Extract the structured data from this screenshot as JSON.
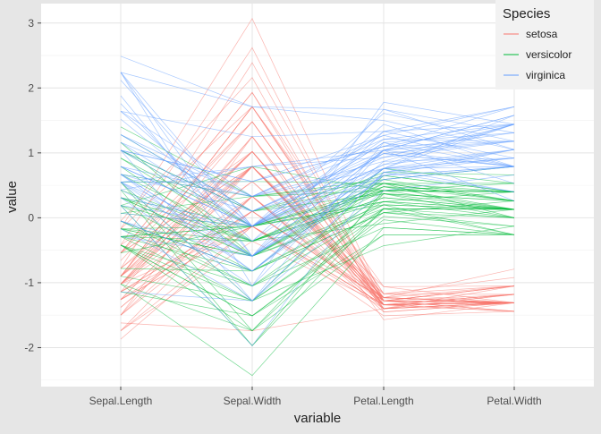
{
  "chart_data": {
    "type": "line",
    "subtype": "parallel-coordinates",
    "title": "",
    "xlabel": "variable",
    "ylabel": "value",
    "categories": [
      "Sepal.Length",
      "Sepal.Width",
      "Petal.Length",
      "Petal.Width"
    ],
    "ylim": [
      -2.6,
      3.3
    ],
    "yticks": [
      -2,
      -1,
      0,
      1,
      2,
      3
    ],
    "grid": true,
    "legend": {
      "title": "Species",
      "position": "top-right",
      "entries": [
        "setosa",
        "versicolor",
        "virginica"
      ]
    },
    "colors": {
      "setosa": "#F8766D",
      "versicolor": "#00BA38",
      "virginica": "#619CFF"
    },
    "series": [
      {
        "name": "setosa",
        "values": [
          [
            -0.9,
            1.02,
            -1.34,
            -1.31
          ],
          [
            -1.14,
            -0.13,
            -1.34,
            -1.31
          ],
          [
            -1.38,
            0.33,
            -1.4,
            -1.31
          ],
          [
            -1.5,
            0.1,
            -1.28,
            -1.31
          ],
          [
            -1.02,
            1.25,
            -1.34,
            -1.31
          ],
          [
            -0.54,
            1.93,
            -1.17,
            -1.05
          ],
          [
            -1.5,
            0.79,
            -1.34,
            -1.18
          ],
          [
            -1.02,
            0.79,
            -1.28,
            -1.31
          ],
          [
            -1.74,
            -0.36,
            -1.34,
            -1.31
          ],
          [
            -1.14,
            0.1,
            -1.28,
            -1.44
          ],
          [
            -0.54,
            1.48,
            -1.28,
            -1.31
          ],
          [
            -1.26,
            0.79,
            -1.23,
            -1.31
          ],
          [
            -1.26,
            -0.13,
            -1.34,
            -1.44
          ],
          [
            -1.87,
            -0.13,
            -1.51,
            -1.44
          ],
          [
            -0.05,
            2.16,
            -1.45,
            -1.31
          ],
          [
            -0.17,
            3.07,
            -1.28,
            -1.05
          ],
          [
            -0.54,
            1.93,
            -1.4,
            -1.05
          ],
          [
            -0.9,
            1.02,
            -1.34,
            -1.18
          ],
          [
            -0.17,
            1.71,
            -1.17,
            -1.18
          ],
          [
            -0.9,
            1.71,
            -1.28,
            -1.18
          ],
          [
            -0.54,
            0.79,
            -1.17,
            -1.31
          ],
          [
            -0.9,
            1.48,
            -1.28,
            -1.05
          ],
          [
            -1.5,
            1.25,
            -1.57,
            -1.31
          ],
          [
            -0.9,
            0.56,
            -1.17,
            -0.92
          ],
          [
            -1.26,
            0.79,
            -1.06,
            -1.31
          ],
          [
            -1.02,
            -0.13,
            -1.23,
            -1.31
          ],
          [
            -1.02,
            0.79,
            -1.23,
            -1.05
          ],
          [
            -0.78,
            1.02,
            -1.28,
            -1.31
          ],
          [
            -0.78,
            0.79,
            -1.34,
            -1.31
          ],
          [
            -1.38,
            0.33,
            -1.23,
            -1.31
          ],
          [
            -1.26,
            0.1,
            -1.23,
            -1.31
          ],
          [
            -0.54,
            0.79,
            -1.28,
            -1.05
          ],
          [
            -0.78,
            2.39,
            -1.28,
            -1.44
          ],
          [
            -0.42,
            2.62,
            -1.34,
            -1.31
          ],
          [
            -1.14,
            0.1,
            -1.28,
            -1.31
          ],
          [
            -1.02,
            0.33,
            -1.45,
            -1.31
          ],
          [
            -0.42,
            1.02,
            -1.4,
            -1.31
          ],
          [
            -1.14,
            1.25,
            -1.34,
            -1.44
          ],
          [
            -1.74,
            -0.13,
            -1.4,
            -1.31
          ],
          [
            -0.9,
            0.79,
            -1.28,
            -1.31
          ],
          [
            -1.02,
            1.02,
            -1.4,
            -1.18
          ],
          [
            -1.62,
            -1.74,
            -1.4,
            -1.18
          ],
          [
            -1.74,
            0.33,
            -1.4,
            -1.31
          ],
          [
            -1.02,
            1.02,
            -1.23,
            -0.79
          ],
          [
            -0.9,
            1.71,
            -1.06,
            -1.05
          ],
          [
            -1.26,
            -0.13,
            -1.34,
            -1.18
          ],
          [
            -0.9,
            1.71,
            -1.23,
            -1.31
          ],
          [
            -1.5,
            0.33,
            -1.34,
            -1.31
          ],
          [
            -0.66,
            1.48,
            -1.28,
            -1.31
          ],
          [
            -1.02,
            0.56,
            -1.34,
            -1.31
          ]
        ]
      },
      {
        "name": "versicolor",
        "values": [
          [
            1.4,
            0.33,
            0.53,
            0.26
          ],
          [
            0.67,
            0.33,
            0.42,
            0.4
          ],
          [
            1.28,
            0.1,
            0.65,
            0.4
          ],
          [
            -0.42,
            -1.74,
            0.14,
            0.13
          ],
          [
            0.79,
            -0.59,
            0.48,
            0.4
          ],
          [
            -0.17,
            -0.59,
            0.42,
            0.13
          ],
          [
            0.55,
            0.56,
            0.53,
            0.53
          ],
          [
            -1.14,
            -1.51,
            -0.26,
            -0.26
          ],
          [
            0.92,
            -0.36,
            0.48,
            0.13
          ],
          [
            -0.78,
            -0.82,
            0.08,
            0.26
          ],
          [
            -1.02,
            -2.43,
            -0.15,
            -0.26
          ],
          [
            0.07,
            -0.13,
            0.25,
            0.4
          ],
          [
            0.19,
            -1.97,
            0.14,
            -0.26
          ],
          [
            0.31,
            -0.36,
            0.53,
            0.26
          ],
          [
            -0.29,
            -0.36,
            -0.09,
            0.13
          ],
          [
            1.04,
            0.1,
            0.37,
            0.26
          ],
          [
            -0.29,
            -0.13,
            0.42,
            0.4
          ],
          [
            -0.05,
            -0.82,
            0.2,
            -0.26
          ],
          [
            0.43,
            -1.97,
            0.42,
            0.4
          ],
          [
            -0.29,
            -1.28,
            0.08,
            -0.13
          ],
          [
            0.07,
            0.33,
            0.59,
            0.79
          ],
          [
            0.31,
            -0.59,
            0.14,
            0.13
          ],
          [
            0.55,
            -1.28,
            0.65,
            0.4
          ],
          [
            0.31,
            -0.59,
            0.53,
            0.0
          ],
          [
            0.67,
            -0.36,
            0.31,
            0.13
          ],
          [
            0.92,
            -0.13,
            0.37,
            0.26
          ],
          [
            1.16,
            -0.59,
            0.59,
            0.26
          ],
          [
            1.04,
            -0.13,
            0.7,
            0.66
          ],
          [
            0.19,
            -0.36,
            0.42,
            0.4
          ],
          [
            -0.17,
            -1.05,
            -0.15,
            -0.26
          ],
          [
            -0.42,
            -1.51,
            0.02,
            -0.13
          ],
          [
            -0.42,
            -1.51,
            -0.03,
            -0.26
          ],
          [
            -0.05,
            -0.82,
            0.08,
            0.0
          ],
          [
            0.19,
            -0.82,
            0.76,
            0.53
          ],
          [
            -0.54,
            -0.13,
            0.42,
            0.4
          ],
          [
            0.19,
            0.79,
            0.42,
            0.53
          ],
          [
            1.04,
            0.1,
            0.53,
            0.4
          ],
          [
            0.55,
            -1.74,
            0.37,
            0.13
          ],
          [
            -0.29,
            -0.13,
            0.2,
            0.13
          ],
          [
            -0.42,
            -1.28,
            0.14,
            0.13
          ],
          [
            -0.42,
            -1.05,
            0.37,
            0.0
          ],
          [
            0.31,
            -0.13,
            0.48,
            0.26
          ],
          [
            -0.05,
            -1.05,
            0.14,
            0.0
          ],
          [
            -1.02,
            -1.74,
            -0.26,
            -0.26
          ],
          [
            -0.29,
            -0.82,
            0.25,
            0.13
          ],
          [
            -0.17,
            -0.13,
            0.25,
            0.0
          ],
          [
            -0.17,
            -0.36,
            0.25,
            0.13
          ],
          [
            0.43,
            -0.36,
            0.31,
            0.13
          ],
          [
            -0.9,
            -1.28,
            -0.43,
            -0.13
          ],
          [
            -0.17,
            -0.59,
            0.2,
            0.13
          ]
        ]
      },
      {
        "name": "virginica",
        "values": [
          [
            0.55,
            0.56,
            1.27,
            1.71
          ],
          [
            -0.05,
            -0.82,
            0.76,
            0.92
          ],
          [
            1.52,
            -0.13,
            1.21,
            1.18
          ],
          [
            0.55,
            -0.36,
            1.04,
            0.79
          ],
          [
            0.79,
            -0.13,
            1.16,
            1.31
          ],
          [
            2.12,
            -0.13,
            1.61,
            1.18
          ],
          [
            -1.14,
            -1.28,
            0.42,
            0.66
          ],
          [
            1.76,
            -0.36,
            1.44,
            0.79
          ],
          [
            1.04,
            -1.28,
            1.16,
            0.79
          ],
          [
            1.64,
            1.25,
            1.33,
            1.71
          ],
          [
            0.79,
            0.33,
            0.76,
            1.05
          ],
          [
            0.67,
            -0.82,
            0.87,
            0.92
          ],
          [
            1.16,
            -0.13,
            0.99,
            1.18
          ],
          [
            -0.17,
            -1.28,
            0.7,
            1.05
          ],
          [
            -0.05,
            -0.59,
            0.76,
            1.58
          ],
          [
            0.67,
            0.33,
            0.87,
            1.44
          ],
          [
            0.79,
            -0.13,
            0.99,
            0.79
          ],
          [
            2.24,
            1.71,
            1.67,
            1.31
          ],
          [
            2.24,
            -1.05,
            1.78,
            1.44
          ],
          [
            0.19,
            -1.97,
            0.7,
            0.4
          ],
          [
            1.28,
            0.33,
            1.1,
            1.44
          ],
          [
            -0.29,
            -0.59,
            0.65,
            1.05
          ],
          [
            2.24,
            -0.59,
            1.67,
            1.05
          ],
          [
            0.55,
            -0.82,
            0.65,
            0.79
          ],
          [
            1.04,
            0.56,
            1.1,
            1.18
          ],
          [
            1.64,
            0.33,
            1.27,
            0.79
          ],
          [
            0.43,
            -0.59,
            0.59,
            0.79
          ],
          [
            0.31,
            -0.13,
            0.65,
            0.79
          ],
          [
            0.67,
            -0.59,
            1.04,
            1.18
          ],
          [
            1.64,
            -0.13,
            1.16,
            0.53
          ],
          [
            1.88,
            -0.59,
            1.33,
            0.92
          ],
          [
            2.49,
            1.71,
            1.5,
            1.05
          ],
          [
            0.67,
            -0.59,
            1.04,
            1.31
          ],
          [
            0.55,
            -0.59,
            0.76,
            0.4
          ],
          [
            0.31,
            -1.05,
            1.04,
            0.26
          ],
          [
            2.24,
            -0.13,
            1.33,
            1.44
          ],
          [
            0.55,
            0.79,
            1.04,
            1.58
          ],
          [
            0.67,
            0.1,
            0.99,
            0.79
          ],
          [
            0.19,
            -0.13,
            0.59,
            0.79
          ],
          [
            1.28,
            0.1,
            0.93,
            1.18
          ],
          [
            1.04,
            0.1,
            1.04,
            1.58
          ],
          [
            1.28,
            0.1,
            0.76,
            1.44
          ],
          [
            -0.05,
            -0.82,
            0.76,
            0.92
          ],
          [
            1.16,
            0.33,
            1.21,
            1.44
          ],
          [
            1.04,
            0.56,
            1.1,
            1.71
          ],
          [
            1.04,
            -0.13,
            0.82,
            1.44
          ],
          [
            0.55,
            -1.28,
            0.7,
            0.92
          ],
          [
            0.79,
            -0.13,
            0.82,
            1.05
          ],
          [
            0.43,
            0.79,
            0.93,
            1.44
          ],
          [
            0.07,
            -0.13,
            0.76,
            0.79
          ]
        ]
      }
    ]
  }
}
